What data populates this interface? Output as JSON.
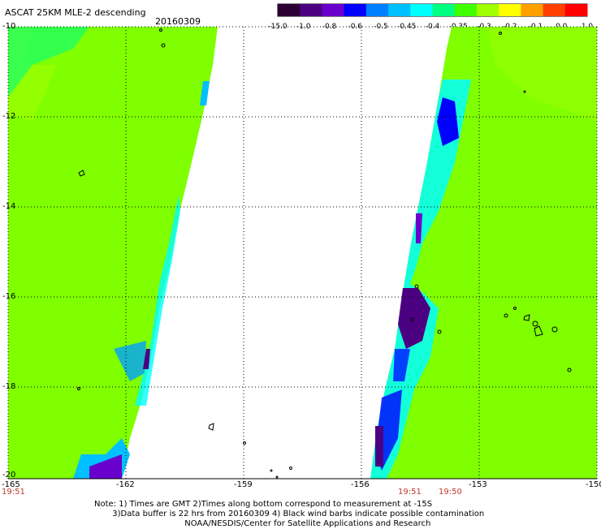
{
  "title": "ASCAT 25KM MLE-2 descending",
  "date": "20160309",
  "colorbar": {
    "ticks": [
      "-15.0",
      "-1.0",
      "-0.8",
      "-0.6",
      "-0.5",
      "-0.45",
      "-0.4",
      "-0.35",
      "-0.3",
      "-0.2",
      "-0.1",
      "0.0",
      "1.0"
    ],
    "colors": [
      "#2a0033",
      "#4b0082",
      "#6a00cc",
      "#0000ff",
      "#0080ff",
      "#00c0ff",
      "#00ffff",
      "#00ff80",
      "#40ff00",
      "#a0ff00",
      "#ffff00",
      "#ffa000",
      "#ff4000",
      "#ff0000"
    ]
  },
  "axes": {
    "lat_labels": [
      "-10",
      "-12",
      "-14",
      "-16",
      "-18",
      "-20"
    ],
    "lon_labels": [
      "-165",
      "-162",
      "-159",
      "-156",
      "-153",
      "-150"
    ]
  },
  "pass_times": [
    "19:51",
    "19:51",
    "19:50"
  ],
  "notes": [
    "Note: 1) Times are GMT 2)Times along bottom correspond to measurement at -15S",
    "       3)Data buffer is 22 hrs from 20160309 4) Black wind barbs indicate possible contamination",
    "                                   NOAA/NESDIS/Center for Satellite Applications and Research"
  ],
  "colors": {
    "swath_main": "#7fff00",
    "swath_edge": "#00ffff",
    "swath_deep": "#0000ff",
    "anomaly": "#4b0082",
    "time_text": "#c0392b"
  }
}
